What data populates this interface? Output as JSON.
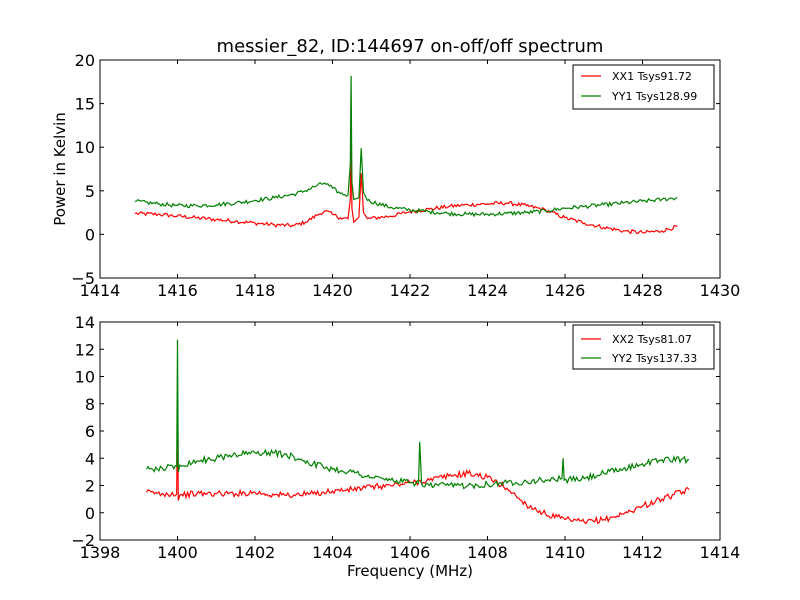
{
  "chart_data": [
    {
      "type": "line",
      "title": "messier_82, ID:144697 on-off/off spectrum",
      "xlabel": "",
      "ylabel": "Power in Kelvin",
      "xlim": [
        1414,
        1430
      ],
      "ylim": [
        -5,
        20
      ],
      "xticks": [
        "1414",
        "1416",
        "1418",
        "1420",
        "1422",
        "1424",
        "1426",
        "1428",
        "1430"
      ],
      "yticks": [
        "−5",
        "0",
        "5",
        "10",
        "15",
        "20"
      ],
      "xtick_values": [
        1414,
        1416,
        1418,
        1420,
        1422,
        1424,
        1426,
        1428,
        1430
      ],
      "ytick_values": [
        -5,
        0,
        5,
        10,
        15,
        20
      ],
      "legend_position": "top-right",
      "series": [
        {
          "name": "XX1 Tsys91.72",
          "color": "#ff0000",
          "x": [
            1414.9,
            1415.5,
            1416,
            1416.5,
            1417,
            1417.5,
            1418,
            1418.5,
            1419,
            1419.3,
            1419.6,
            1419.8,
            1420.0,
            1420.2,
            1420.4,
            1420.46,
            1420.48,
            1420.5,
            1420.55,
            1420.68,
            1420.74,
            1420.8,
            1420.9,
            1421.5,
            1422,
            1422.5,
            1423,
            1423.5,
            1424,
            1424.5,
            1425,
            1425.5,
            1426,
            1426.5,
            1427,
            1427.5,
            1428,
            1428.5,
            1428.9
          ],
          "y": [
            2.4,
            2.3,
            2.1,
            1.9,
            1.7,
            1.5,
            1.3,
            1.1,
            1.0,
            1.4,
            2.2,
            2.7,
            2.3,
            1.9,
            1.8,
            4.0,
            12.0,
            3.0,
            1.4,
            2.0,
            7.0,
            2.5,
            1.8,
            2.1,
            2.6,
            2.9,
            3.2,
            3.4,
            3.5,
            3.6,
            3.3,
            2.8,
            1.9,
            1.3,
            0.8,
            0.4,
            0.2,
            0.4,
            0.9
          ]
        },
        {
          "name": "YY1 Tsys128.99",
          "color": "#008000",
          "x": [
            1414.9,
            1415.5,
            1416,
            1416.5,
            1417,
            1417.5,
            1418,
            1418.5,
            1419,
            1419.3,
            1419.6,
            1419.8,
            1420.0,
            1420.2,
            1420.4,
            1420.46,
            1420.48,
            1420.5,
            1420.55,
            1420.68,
            1420.74,
            1420.8,
            1420.9,
            1421.5,
            1422,
            1422.5,
            1423,
            1423.5,
            1424,
            1424.5,
            1425,
            1425.5,
            1426,
            1426.5,
            1427,
            1427.5,
            1428,
            1428.5,
            1428.9
          ],
          "y": [
            3.8,
            3.5,
            3.3,
            3.3,
            3.4,
            3.6,
            3.9,
            4.2,
            4.6,
            5.0,
            5.6,
            5.9,
            5.3,
            4.7,
            4.5,
            8.0,
            18.2,
            6.0,
            4.0,
            4.2,
            9.9,
            4.8,
            3.9,
            3.1,
            2.8,
            2.6,
            2.4,
            2.3,
            2.3,
            2.4,
            2.5,
            2.7,
            3.0,
            3.2,
            3.4,
            3.6,
            3.8,
            4.0,
            4.2
          ]
        }
      ]
    },
    {
      "type": "line",
      "title": "",
      "xlabel": "Frequency (MHz)",
      "ylabel": "",
      "xlim": [
        1398,
        1414
      ],
      "ylim": [
        -2,
        14
      ],
      "xticks": [
        "1398",
        "1400",
        "1402",
        "1404",
        "1406",
        "1408",
        "1410",
        "1412",
        "1414"
      ],
      "yticks": [
        "−2",
        "0",
        "2",
        "4",
        "6",
        "8",
        "10",
        "12",
        "14"
      ],
      "xtick_values": [
        1398,
        1400,
        1402,
        1404,
        1406,
        1408,
        1410,
        1412,
        1414
      ],
      "ytick_values": [
        -2,
        0,
        2,
        4,
        6,
        8,
        10,
        12,
        14
      ],
      "legend_position": "top-right",
      "series": [
        {
          "name": "XX2 Tsys81.07",
          "color": "#ff0000",
          "x": [
            1399.2,
            1399.6,
            1399.98,
            1400.0,
            1400.02,
            1400.06,
            1400.5,
            1401,
            1401.5,
            1402,
            1402.5,
            1403,
            1403.5,
            1404,
            1404.5,
            1405,
            1405.5,
            1406,
            1406.5,
            1407,
            1407.5,
            1408,
            1408.5,
            1409,
            1409.5,
            1410,
            1410.5,
            1411,
            1411.5,
            1412,
            1412.5,
            1413.2
          ],
          "y": [
            1.5,
            1.4,
            1.4,
            8.0,
            0.9,
            1.3,
            1.4,
            1.4,
            1.4,
            1.5,
            1.3,
            1.3,
            1.4,
            1.6,
            1.7,
            1.9,
            2.0,
            2.2,
            2.4,
            2.7,
            2.9,
            2.6,
            1.8,
            0.6,
            -0.1,
            -0.5,
            -0.7,
            -0.5,
            -0.1,
            0.5,
            1.0,
            1.7
          ]
        },
        {
          "name": "YY2 Tsys137.33",
          "color": "#008000",
          "x": [
            1399.2,
            1399.6,
            1399.98,
            1400.0,
            1400.02,
            1400.06,
            1400.5,
            1401,
            1401.5,
            1402,
            1402.5,
            1403,
            1403.5,
            1404,
            1404.5,
            1405,
            1405.5,
            1406,
            1406.22,
            1406.25,
            1406.3,
            1406.5,
            1407,
            1407.5,
            1408,
            1408.5,
            1409,
            1409.5,
            1409.92,
            1409.95,
            1409.98,
            1410.5,
            1411,
            1411.5,
            1412,
            1412.5,
            1413.2
          ],
          "y": [
            3.2,
            3.3,
            3.4,
            12.7,
            3.0,
            3.5,
            3.8,
            4.0,
            4.3,
            4.4,
            4.4,
            4.1,
            3.6,
            3.2,
            3.0,
            2.6,
            2.4,
            2.2,
            2.2,
            5.2,
            2.1,
            2.0,
            2.0,
            2.0,
            2.1,
            2.2,
            2.3,
            2.4,
            2.5,
            4.0,
            2.4,
            2.5,
            2.9,
            3.2,
            3.6,
            3.9,
            3.9
          ]
        }
      ]
    }
  ]
}
